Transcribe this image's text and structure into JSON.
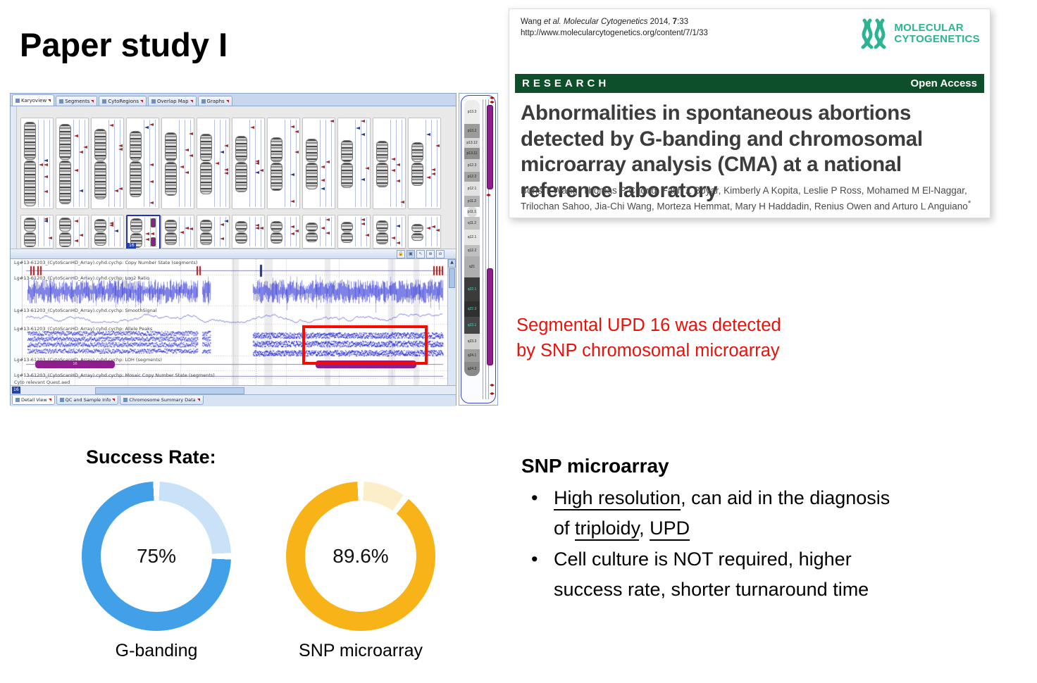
{
  "slide": {
    "title": "Paper study I"
  },
  "paper_card": {
    "citation": {
      "author": "Wang ",
      "etal": "et al. Molecular Cytogenetics",
      "year": " 2014, ",
      "volume": "7",
      "pages": ":33",
      "url": "http://www.molecularcytogenetics.org/content/7/1/33"
    },
    "journal": {
      "name_line1": "MOLECULAR",
      "name_line2": "CYTOGENETICS",
      "color": "#2cb492"
    },
    "banner": {
      "left": "RESEARCH",
      "right": "Open Access",
      "bg": "#0d4f2b"
    },
    "title": "Abnormalities in spontaneous abortions detected by G-banding and chromosomal microarray analysis (CMA) at a national reference laboratory",
    "authors_line1": "Boris T Wang, Thomas P Chong, Fatih Z Boyar, Kimberly A Kopita, Leslie P Ross, Mohamed M El-Naggar,",
    "authors_line2": "Trilochan Sahoo, Jia-Chi Wang, Morteza Hemmat, Mary H Haddadin, Renius Owen and Arturo L Anguiano",
    "authors_mark": "*"
  },
  "software": {
    "top_tabs": [
      "Karyoview",
      "Segments",
      "CytoRegions",
      "Overlap Map",
      "Graphs"
    ],
    "bottom_tabs": [
      "Detail View",
      "QC and Sample Info",
      "Chromosome Summary Data"
    ],
    "track_labels": [
      "Lg#13-61203_(CytoScanHD_Array).cyhd.cychp: Copy Number State (segments)",
      "Lg#13-61203_(CytoScanHD_Array).cyhd.cychp: Log2 Ratio",
      "Lg#13-61203_(CytoScanHD_Array).cyhd.cychp: SmoothSignal",
      "Lg#13-61203_(CytoScanHD_Array).cyhd.cychp: Allele Peaks",
      "Lg#13-61203_(CytoScanHD_Array).cyhd.cychp: LOH (segments)",
      "Lg#13-61203_(CytoScanHD_Array).cyhd.cychp: Mosaic Copy Number State (segments)",
      "Cyto relevant Quest.aed"
    ],
    "loh_segment_label": "16",
    "chromosome_badge": "16",
    "ideogram_bands": [
      "p13.3",
      "p13.2",
      "p13.12",
      "p13.11",
      "p12.3",
      "p12.2",
      "p12.1",
      "p11.2",
      "p11.1",
      "q11.2",
      "q12.1",
      "q12.2",
      "q21",
      "q22.1",
      "q22.3",
      "q23.1",
      "q23.3",
      "q24.1",
      "q24.3"
    ]
  },
  "callout": {
    "line1": "Segmental UPD 16 was detected",
    "line2": "by SNP chromosomal microarray",
    "color": "#e8120d"
  },
  "success": {
    "heading": "Success Rate:"
  },
  "chart_data": [
    {
      "type": "pie",
      "variant": "donut",
      "title": "Success Rate:",
      "label": "G-banding",
      "value": 75,
      "display": "75%",
      "segment_color": "#42a0e8",
      "remainder_color": "#c9e2f8"
    },
    {
      "type": "pie",
      "variant": "donut",
      "title": "Success Rate:",
      "label": "SNP microarray",
      "value": 89.6,
      "display": "89.6%",
      "segment_color": "#f8b319",
      "remainder_color": "#fceec9"
    }
  ],
  "snp_section": {
    "heading": "SNP microarray",
    "bullets": [
      {
        "segments": [
          {
            "text": "High resolution",
            "underline": true
          },
          {
            "text": ", can aid in the diagnosis",
            "underline": false
          },
          {
            "break": true
          },
          {
            "text": "of ",
            "underline": false
          },
          {
            "text": "triploidy",
            "underline": true
          },
          {
            "text": ", ",
            "underline": false
          },
          {
            "text": "UPD",
            "underline": true
          }
        ]
      },
      {
        "segments": [
          {
            "text": "Cell culture is NOT required, higher",
            "underline": false
          },
          {
            "break": true
          },
          {
            "text": "success rate, shorter turnaround time",
            "underline": false
          }
        ]
      }
    ]
  }
}
